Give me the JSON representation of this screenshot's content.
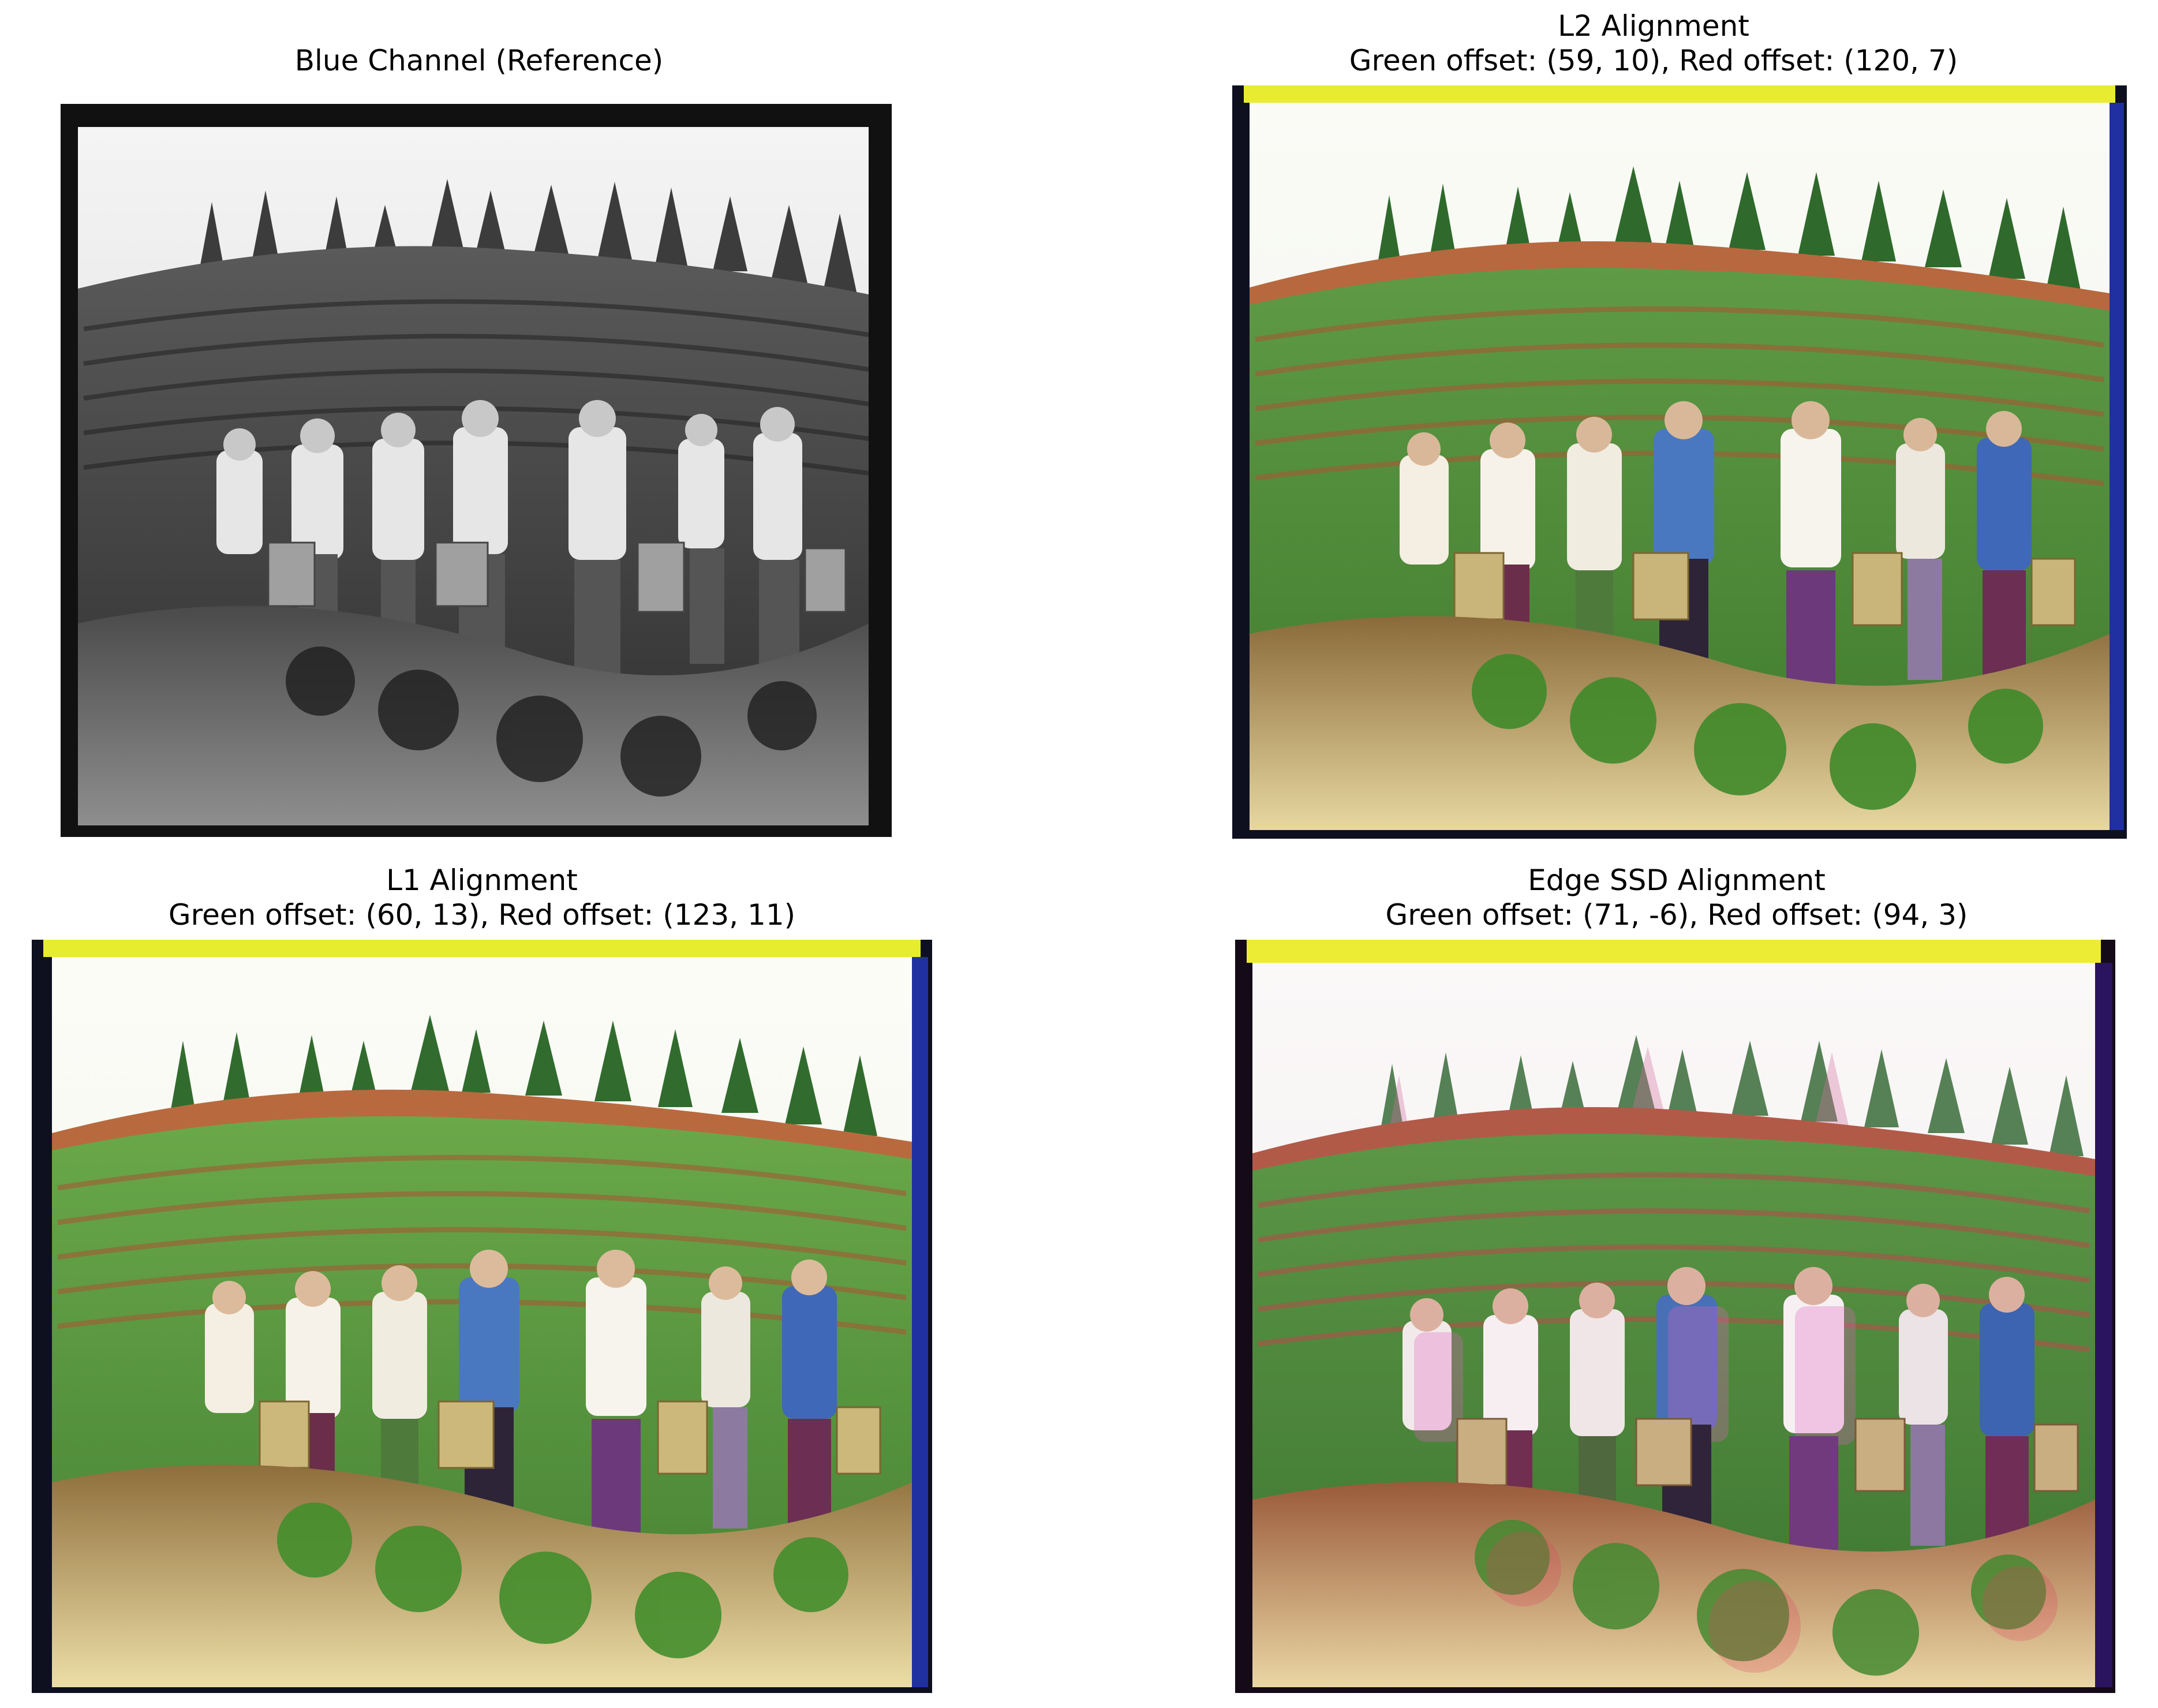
{
  "figure": {
    "panels": [
      {
        "id": "blue",
        "title_lines": [
          "Blue Channel (Reference)"
        ],
        "mode": "grayscale"
      },
      {
        "id": "l2",
        "title_lines": [
          "L2 Alignment",
          "Green offset: (59, 10), Red offset: (120, 7)"
        ],
        "mode": "color"
      },
      {
        "id": "l1",
        "title_lines": [
          "L1 Alignment",
          "Green offset: (60, 13), Red offset: (123, 11)"
        ],
        "mode": "color"
      },
      {
        "id": "edge",
        "title_lines": [
          "Edge SSD Alignment",
          "Green offset: (71, -6), Red offset: (94, 3)"
        ],
        "mode": "color-ghosted"
      }
    ]
  }
}
